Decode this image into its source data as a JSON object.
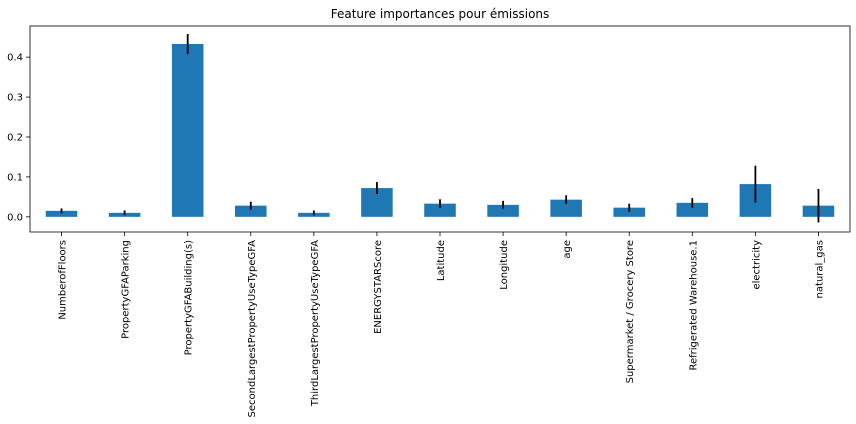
{
  "chart_data": {
    "type": "bar",
    "title": "Feature importances pour émissions",
    "xlabel": "",
    "ylabel": "",
    "categories": [
      "NumberofFloors",
      "PropertyGFAParking",
      "PropertyGFABuilding(s)",
      "SecondLargestPropertyUseTypeGFA",
      "ThirdLargestPropertyUseTypeGFA",
      "ENERGYSTARScore",
      "Latitude",
      "Longitude",
      "age",
      "Supermarket / Grocery Store",
      "Refrigerated Warehouse.1",
      "electricity",
      "natural_gas"
    ],
    "values": [
      0.015,
      0.01,
      0.433,
      0.028,
      0.01,
      0.072,
      0.033,
      0.03,
      0.043,
      0.023,
      0.035,
      0.082,
      0.028
    ],
    "errors": [
      0.006,
      0.006,
      0.025,
      0.01,
      0.006,
      0.015,
      0.011,
      0.01,
      0.011,
      0.01,
      0.012,
      0.046,
      0.042
    ],
    "ylim": [
      -0.038,
      0.478
    ],
    "yticks": [
      "0.0",
      "0.1",
      "0.2",
      "0.3",
      "0.4"
    ],
    "ytick_values": [
      0,
      0.1,
      0.2,
      0.3,
      0.4
    ],
    "grid": false,
    "bar_color": "#1f77b4",
    "error_color": "#000000"
  }
}
